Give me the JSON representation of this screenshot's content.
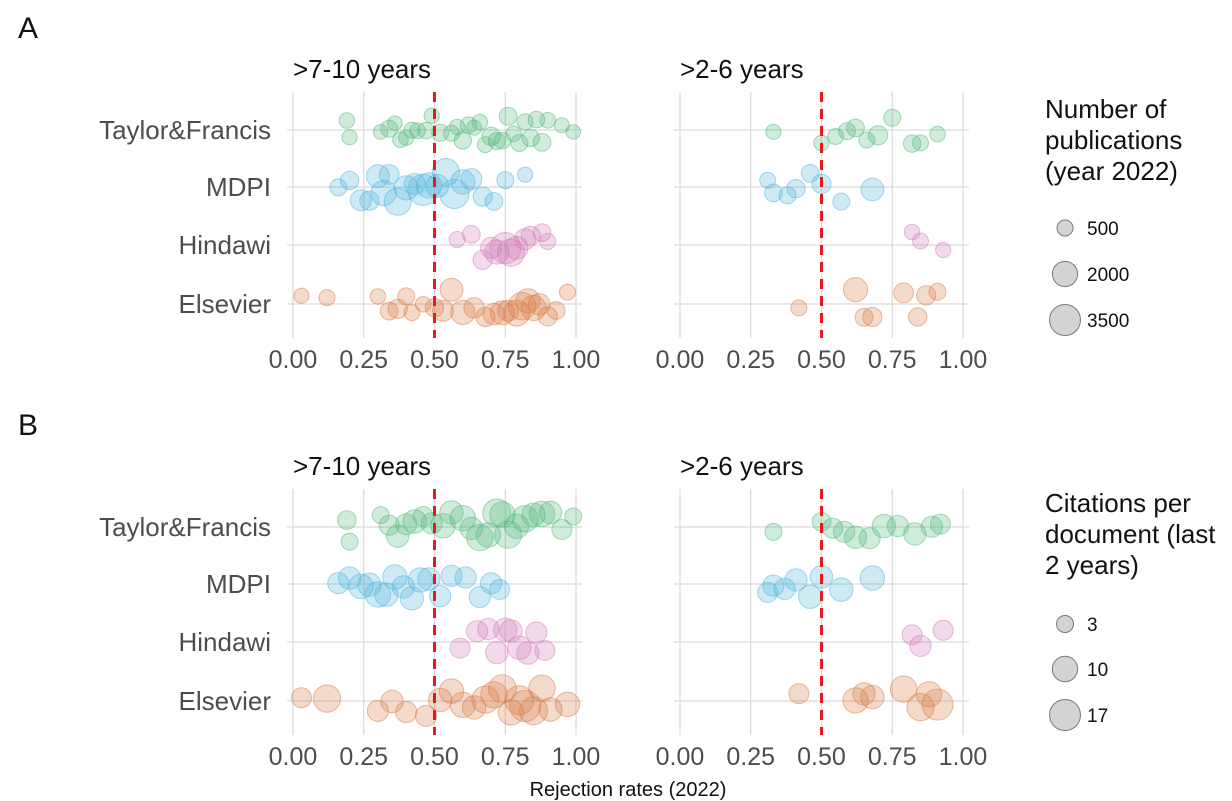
{
  "chart_data": [
    {
      "panel": "A",
      "type": "scatter",
      "facets": [
        ">7-10 years",
        ">2-6 years"
      ],
      "categories": [
        "Taylor&Francis",
        "MDPI",
        "Hindawi",
        "Elsevier"
      ],
      "xlim": [
        0,
        1
      ],
      "xticks": [
        "0.00",
        "0.25",
        "0.50",
        "0.75",
        "1.00"
      ],
      "reference_line_x": 0.5,
      "grid": true,
      "colors": {
        "Taylor&Francis": "#52b77a",
        "MDPI": "#4fb3dc",
        "Hindawi": "#d17bb6",
        "Elsevier": "#d97a43",
        "reference": "#e41a1c"
      },
      "size_legend": {
        "title": [
          "Number of",
          "publications",
          "(year 2022)"
        ],
        "breaks": [
          "500",
          "2000",
          "3500"
        ]
      },
      "series": [
        {
          "name": "Taylor&Francis",
          "facet": ">7-10 years",
          "points": [
            [
              0.19,
              450
            ],
            [
              0.2,
              400
            ],
            [
              0.31,
              350
            ],
            [
              0.34,
              600
            ],
            [
              0.36,
              350
            ],
            [
              0.38,
              450
            ],
            [
              0.4,
              400
            ],
            [
              0.42,
              500
            ],
            [
              0.44,
              450
            ],
            [
              0.47,
              550
            ],
            [
              0.49,
              400
            ],
            [
              0.52,
              600
            ],
            [
              0.56,
              500
            ],
            [
              0.58,
              450
            ],
            [
              0.6,
              650
            ],
            [
              0.62,
              550
            ],
            [
              0.64,
              400
            ],
            [
              0.66,
              450
            ],
            [
              0.68,
              500
            ],
            [
              0.7,
              800
            ],
            [
              0.72,
              600
            ],
            [
              0.74,
              550
            ],
            [
              0.76,
              700
            ],
            [
              0.78,
              450
            ],
            [
              0.8,
              600
            ],
            [
              0.82,
              500
            ],
            [
              0.84,
              650
            ],
            [
              0.86,
              550
            ],
            [
              0.88,
              700
            ],
            [
              0.9,
              450
            ],
            [
              0.95,
              400
            ],
            [
              0.99,
              350
            ]
          ]
        },
        {
          "name": "MDPI",
          "facet": ">7-10 years",
          "points": [
            [
              0.16,
              600
            ],
            [
              0.2,
              800
            ],
            [
              0.24,
              1200
            ],
            [
              0.27,
              900
            ],
            [
              0.3,
              1500
            ],
            [
              0.32,
              2000
            ],
            [
              0.34,
              1000
            ],
            [
              0.37,
              2500
            ],
            [
              0.4,
              1800
            ],
            [
              0.43,
              1200
            ],
            [
              0.46,
              3500
            ],
            [
              0.48,
              2000
            ],
            [
              0.51,
              1500
            ],
            [
              0.54,
              2500
            ],
            [
              0.57,
              3000
            ],
            [
              0.6,
              1800
            ],
            [
              0.63,
              1200
            ],
            [
              0.67,
              900
            ],
            [
              0.71,
              700
            ],
            [
              0.75,
              600
            ],
            [
              0.82,
              400
            ]
          ]
        },
        {
          "name": "Hindawi",
          "facet": ">7-10 years",
          "points": [
            [
              0.58,
              500
            ],
            [
              0.63,
              700
            ],
            [
              0.67,
              900
            ],
            [
              0.7,
              1200
            ],
            [
              0.72,
              1800
            ],
            [
              0.75,
              3500
            ],
            [
              0.77,
              2500
            ],
            [
              0.79,
              1500
            ],
            [
              0.82,
              1200
            ],
            [
              0.84,
              900
            ],
            [
              0.88,
              700
            ],
            [
              0.9,
              500
            ]
          ]
        },
        {
          "name": "Elsevier",
          "facet": ">7-10 years",
          "points": [
            [
              0.03,
              400
            ],
            [
              0.12,
              500
            ],
            [
              0.3,
              450
            ],
            [
              0.34,
              700
            ],
            [
              0.37,
              900
            ],
            [
              0.4,
              600
            ],
            [
              0.42,
              500
            ],
            [
              0.46,
              450
            ],
            [
              0.5,
              800
            ],
            [
              0.53,
              1200
            ],
            [
              0.56,
              1500
            ],
            [
              0.6,
              1800
            ],
            [
              0.64,
              1100
            ],
            [
              0.68,
              900
            ],
            [
              0.71,
              1300
            ],
            [
              0.74,
              1700
            ],
            [
              0.76,
              1200
            ],
            [
              0.79,
              2200
            ],
            [
              0.81,
              2600
            ],
            [
              0.83,
              1800
            ],
            [
              0.85,
              2000
            ],
            [
              0.87,
              1300
            ],
            [
              0.9,
              900
            ],
            [
              0.93,
              700
            ],
            [
              0.97,
              500
            ]
          ]
        },
        {
          "name": "Taylor&Francis",
          "facet": ">2-6 years",
          "points": [
            [
              0.33,
              400
            ],
            [
              0.5,
              450
            ],
            [
              0.55,
              500
            ],
            [
              0.59,
              600
            ],
            [
              0.62,
              700
            ],
            [
              0.66,
              500
            ],
            [
              0.7,
              900
            ],
            [
              0.75,
              600
            ],
            [
              0.82,
              650
            ],
            [
              0.85,
              500
            ],
            [
              0.91,
              450
            ]
          ]
        },
        {
          "name": "MDPI",
          "facet": ">2-6 years",
          "points": [
            [
              0.31,
              500
            ],
            [
              0.33,
              700
            ],
            [
              0.38,
              600
            ],
            [
              0.41,
              800
            ],
            [
              0.46,
              700
            ],
            [
              0.5,
              900
            ],
            [
              0.57,
              600
            ],
            [
              0.68,
              1500
            ]
          ]
        },
        {
          "name": "Hindawi",
          "facet": ">2-6 years",
          "points": [
            [
              0.82,
              450
            ],
            [
              0.85,
              500
            ],
            [
              0.93,
              400
            ]
          ]
        },
        {
          "name": "Elsevier",
          "facet": ">2-6 years",
          "points": [
            [
              0.42,
              500
            ],
            [
              0.62,
              1800
            ],
            [
              0.65,
              700
            ],
            [
              0.68,
              900
            ],
            [
              0.79,
              1000
            ],
            [
              0.84,
              800
            ],
            [
              0.87,
              900
            ],
            [
              0.91,
              600
            ]
          ]
        }
      ]
    },
    {
      "panel": "B",
      "type": "scatter",
      "facets": [
        ">7-10 years",
        ">2-6 years"
      ],
      "categories": [
        "Taylor&Francis",
        "MDPI",
        "Hindawi",
        "Elsevier"
      ],
      "xlim": [
        0,
        1
      ],
      "xticks": [
        "0.00",
        "0.25",
        "0.50",
        "0.75",
        "1.00"
      ],
      "reference_line_x": 0.5,
      "grid": true,
      "colors": {
        "Taylor&Francis": "#52b77a",
        "MDPI": "#4fb3dc",
        "Hindawi": "#d17bb6",
        "Elsevier": "#d97a43",
        "reference": "#e41a1c"
      },
      "size_legend": {
        "title": [
          "Citations per",
          "document (last",
          "2 years)"
        ],
        "breaks": [
          "3",
          "10",
          "17"
        ]
      },
      "series": [
        {
          "name": "Taylor&Francis",
          "facet": ">7-10 years",
          "points": [
            [
              0.19,
              4
            ],
            [
              0.2,
              3
            ],
            [
              0.31,
              3
            ],
            [
              0.34,
              5
            ],
            [
              0.37,
              7
            ],
            [
              0.4,
              6
            ],
            [
              0.43,
              8
            ],
            [
              0.46,
              5
            ],
            [
              0.49,
              6
            ],
            [
              0.53,
              9
            ],
            [
              0.56,
              8
            ],
            [
              0.6,
              10
            ],
            [
              0.63,
              7
            ],
            [
              0.66,
              11
            ],
            [
              0.69,
              9
            ],
            [
              0.72,
              13
            ],
            [
              0.74,
              10
            ],
            [
              0.76,
              12
            ],
            [
              0.79,
              9
            ],
            [
              0.82,
              11
            ],
            [
              0.85,
              8
            ],
            [
              0.88,
              10
            ],
            [
              0.91,
              7
            ],
            [
              0.95,
              5
            ],
            [
              0.99,
              3
            ]
          ]
        },
        {
          "name": "MDPI",
          "facet": ">7-10 years",
          "points": [
            [
              0.16,
              6
            ],
            [
              0.2,
              7
            ],
            [
              0.24,
              9
            ],
            [
              0.27,
              8
            ],
            [
              0.3,
              10
            ],
            [
              0.33,
              8
            ],
            [
              0.36,
              9
            ],
            [
              0.39,
              7
            ],
            [
              0.42,
              8
            ],
            [
              0.45,
              9
            ],
            [
              0.48,
              7
            ],
            [
              0.52,
              6
            ],
            [
              0.56,
              6
            ],
            [
              0.61,
              6
            ],
            [
              0.66,
              6
            ],
            [
              0.7,
              6
            ],
            [
              0.73,
              5
            ]
          ]
        },
        {
          "name": "Hindawi",
          "facet": ">7-10 years",
          "points": [
            [
              0.59,
              5
            ],
            [
              0.65,
              6
            ],
            [
              0.69,
              6
            ],
            [
              0.72,
              7
            ],
            [
              0.75,
              8
            ],
            [
              0.77,
              7
            ],
            [
              0.8,
              8
            ],
            [
              0.83,
              7
            ],
            [
              0.86,
              6
            ],
            [
              0.89,
              5
            ]
          ]
        },
        {
          "name": "Elsevier",
          "facet": ">7-10 years",
          "points": [
            [
              0.03,
              5
            ],
            [
              0.12,
              12
            ],
            [
              0.3,
              6
            ],
            [
              0.35,
              7
            ],
            [
              0.4,
              6
            ],
            [
              0.47,
              6
            ],
            [
              0.52,
              8
            ],
            [
              0.56,
              9
            ],
            [
              0.6,
              10
            ],
            [
              0.64,
              8
            ],
            [
              0.68,
              12
            ],
            [
              0.71,
              11
            ],
            [
              0.74,
              13
            ],
            [
              0.77,
              10
            ],
            [
              0.8,
              14
            ],
            [
              0.82,
              17
            ],
            [
              0.85,
              13
            ],
            [
              0.88,
              11
            ],
            [
              0.91,
              8
            ],
            [
              0.97,
              9
            ]
          ]
        },
        {
          "name": "Taylor&Francis",
          "facet": ">2-6 years",
          "points": [
            [
              0.33,
              3
            ],
            [
              0.5,
              4
            ],
            [
              0.54,
              5
            ],
            [
              0.58,
              6
            ],
            [
              0.62,
              7
            ],
            [
              0.67,
              6
            ],
            [
              0.72,
              8
            ],
            [
              0.77,
              6
            ],
            [
              0.83,
              7
            ],
            [
              0.89,
              6
            ],
            [
              0.92,
              5
            ]
          ]
        },
        {
          "name": "MDPI",
          "facet": ">2-6 years",
          "points": [
            [
              0.31,
              5
            ],
            [
              0.33,
              6
            ],
            [
              0.37,
              6
            ],
            [
              0.41,
              7
            ],
            [
              0.46,
              8
            ],
            [
              0.5,
              7
            ],
            [
              0.57,
              8
            ],
            [
              0.68,
              9
            ]
          ]
        },
        {
          "name": "Hindawi",
          "facet": ">2-6 years",
          "points": [
            [
              0.82,
              5
            ],
            [
              0.85,
              6
            ],
            [
              0.93,
              5
            ]
          ]
        },
        {
          "name": "Elsevier",
          "facet": ">2-6 years",
          "points": [
            [
              0.42,
              5
            ],
            [
              0.62,
              10
            ],
            [
              0.65,
              7
            ],
            [
              0.68,
              8
            ],
            [
              0.79,
              11
            ],
            [
              0.85,
              12
            ],
            [
              0.88,
              10
            ],
            [
              0.91,
              17
            ]
          ]
        }
      ]
    }
  ],
  "shared_xlabel": "Rejection rates (2022)"
}
